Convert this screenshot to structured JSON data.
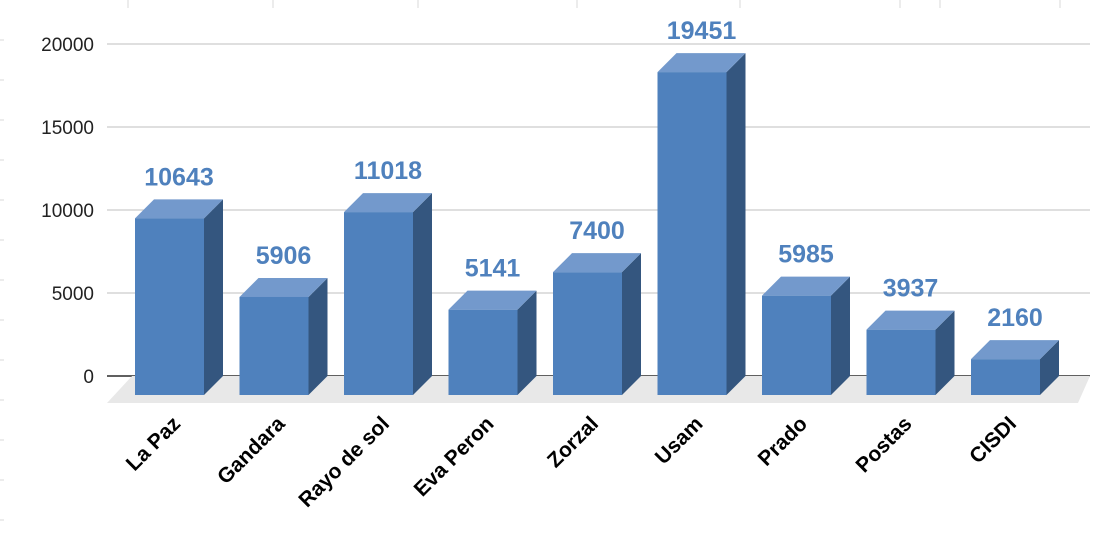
{
  "chart_data": {
    "type": "bar",
    "style": "3d-column",
    "categories": [
      "La Paz",
      "Gandara",
      "Rayo de sol",
      "Eva Peron",
      "Zorzal",
      "Usam",
      "Prado",
      "Postas",
      "CISDI"
    ],
    "series": [
      {
        "values": [
          10643,
          5906,
          11018,
          5141,
          7400,
          19451,
          5985,
          3937,
          2160
        ]
      }
    ],
    "data_labels": [
      "10643",
      "5906",
      "11018",
      "5141",
      "7400",
      "19451",
      "5985",
      "3937",
      "2160"
    ],
    "y_ticks": [
      "0",
      "5000",
      "10000",
      "15000",
      "20000"
    ],
    "ylim": [
      0,
      20000
    ],
    "title": "",
    "xlabel": "",
    "ylabel": "",
    "grid": true,
    "legend": "none",
    "colors": {
      "bar_front": "#4F81BD",
      "bar_top": "#7399CC",
      "bar_side": "#34567F",
      "data_label": "#4F81BD",
      "gridline": "#BFBFBF",
      "floor": "#E8E8E8",
      "sheet_grid": "#DADADA"
    }
  }
}
